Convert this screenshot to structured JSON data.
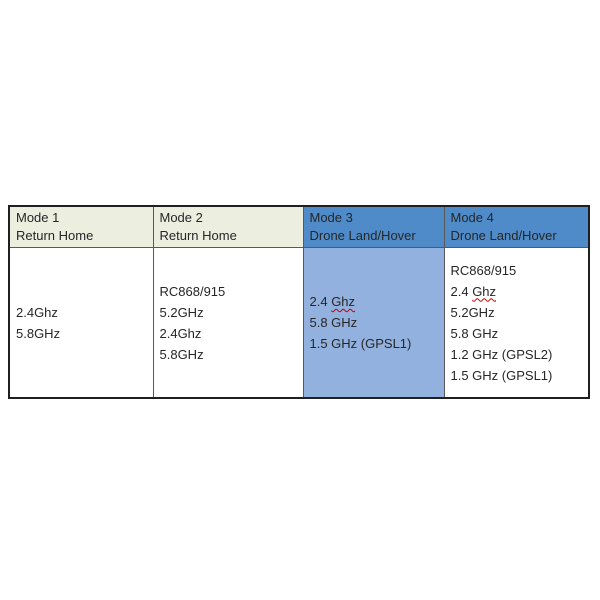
{
  "colors": {
    "header_green": "#ECEFE0",
    "header_blue": "#4E8BC8",
    "body_light_blue": "#93B1DE",
    "body_white": "#FFFFFF",
    "border": "#595959",
    "text": "#262626",
    "spellcheck_underline": "#C00000"
  },
  "table": {
    "columns": [
      {
        "header": {
          "title": "Mode 1",
          "subtitle": "Return Home"
        },
        "lines": [
          {
            "text": "2.4Ghz"
          },
          {
            "text": "5.8GHz"
          }
        ]
      },
      {
        "header": {
          "title": "Mode 2",
          "subtitle": "Return Home"
        },
        "lines": [
          {
            "text": "RC868/915"
          },
          {
            "text": "5.2GHz"
          },
          {
            "text": "2.4Ghz"
          },
          {
            "text": "5.8GHz"
          }
        ]
      },
      {
        "header": {
          "title": "Mode 3",
          "subtitle": "Drone Land/Hover"
        },
        "lines": [
          {
            "text": "2.4 ",
            "misspelled": "Ghz"
          },
          {
            "text": "5.8 GHz"
          },
          {
            "text": "1.5 GHz (GPSL1)"
          }
        ]
      },
      {
        "header": {
          "title": "Mode 4",
          "subtitle": "Drone Land/Hover"
        },
        "lines": [
          {
            "text": "RC868/915"
          },
          {
            "text": "2.4 ",
            "misspelled": "Ghz"
          },
          {
            "text": "5.2GHz"
          },
          {
            "text": "5.8 GHz"
          },
          {
            "text": "1.2 GHz (GPSL2)"
          },
          {
            "text": "1.5 GHz (GPSL1)"
          }
        ]
      }
    ]
  }
}
